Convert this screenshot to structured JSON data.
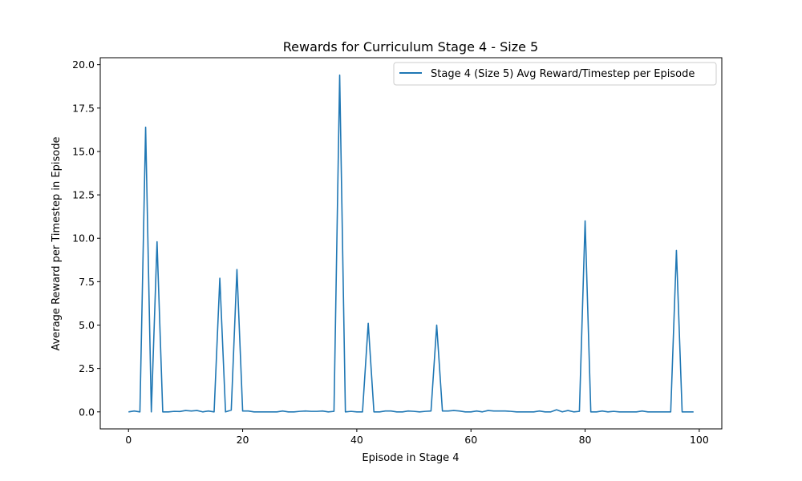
{
  "chart_data": {
    "type": "line",
    "title": "Rewards for Curriculum Stage 4 - Size 5",
    "xlabel": "Episode in Stage 4",
    "ylabel": "Average Reward per Timestep in Episode",
    "xlim": [
      -4.95,
      103.95
    ],
    "ylim": [
      -0.98,
      20.4
    ],
    "xticks": [
      0,
      20,
      40,
      60,
      80,
      100
    ],
    "yticks": [
      0.0,
      2.5,
      5.0,
      7.5,
      10.0,
      12.5,
      15.0,
      17.5,
      20.0
    ],
    "xtick_labels": [
      "0",
      "20",
      "40",
      "60",
      "80",
      "100"
    ],
    "ytick_labels": [
      "0.0",
      "2.5",
      "5.0",
      "7.5",
      "10.0",
      "12.5",
      "15.0",
      "17.5",
      "20.0"
    ],
    "grid": false,
    "legend_position": "top-right",
    "series": [
      {
        "name": "Stage 4 (Size 5) Avg Reward/Timestep per Episode",
        "color": "#1f77b4",
        "x": [
          0,
          1,
          2,
          3,
          4,
          5,
          6,
          7,
          8,
          9,
          10,
          11,
          12,
          13,
          14,
          15,
          16,
          17,
          18,
          19,
          20,
          21,
          22,
          23,
          24,
          25,
          26,
          27,
          28,
          29,
          30,
          31,
          32,
          33,
          34,
          35,
          36,
          37,
          38,
          39,
          40,
          41,
          42,
          43,
          44,
          45,
          46,
          47,
          48,
          49,
          50,
          51,
          52,
          53,
          54,
          55,
          56,
          57,
          58,
          59,
          60,
          61,
          62,
          63,
          64,
          65,
          66,
          67,
          68,
          69,
          70,
          71,
          72,
          73,
          74,
          75,
          76,
          77,
          78,
          79,
          80,
          81,
          82,
          83,
          84,
          85,
          86,
          87,
          88,
          89,
          90,
          91,
          92,
          93,
          94,
          95,
          96,
          97,
          98,
          99
        ],
        "values": [
          0.0,
          0.05,
          0.0,
          16.4,
          0.0,
          9.8,
          0.0,
          0.0,
          0.03,
          0.02,
          0.08,
          0.05,
          0.08,
          0.0,
          0.05,
          0.0,
          7.7,
          0.0,
          0.1,
          8.2,
          0.05,
          0.05,
          0.0,
          0.0,
          0.0,
          0.0,
          0.0,
          0.05,
          0.0,
          0.0,
          0.03,
          0.05,
          0.03,
          0.03,
          0.05,
          0.0,
          0.03,
          19.4,
          0.0,
          0.03,
          0.0,
          0.0,
          5.1,
          0.0,
          0.0,
          0.05,
          0.05,
          0.0,
          0.0,
          0.05,
          0.03,
          0.0,
          0.03,
          0.05,
          5.0,
          0.05,
          0.05,
          0.08,
          0.05,
          0.0,
          0.0,
          0.05,
          0.0,
          0.08,
          0.05,
          0.05,
          0.05,
          0.03,
          0.0,
          0.0,
          0.0,
          0.0,
          0.05,
          0.0,
          0.0,
          0.12,
          0.0,
          0.08,
          0.0,
          0.03,
          11.0,
          0.0,
          0.0,
          0.05,
          0.0,
          0.03,
          0.0,
          0.0,
          0.0,
          0.0,
          0.05,
          0.0,
          0.0,
          0.0,
          0.0,
          0.0,
          9.3,
          0.0,
          0.0,
          0.0
        ]
      }
    ]
  }
}
